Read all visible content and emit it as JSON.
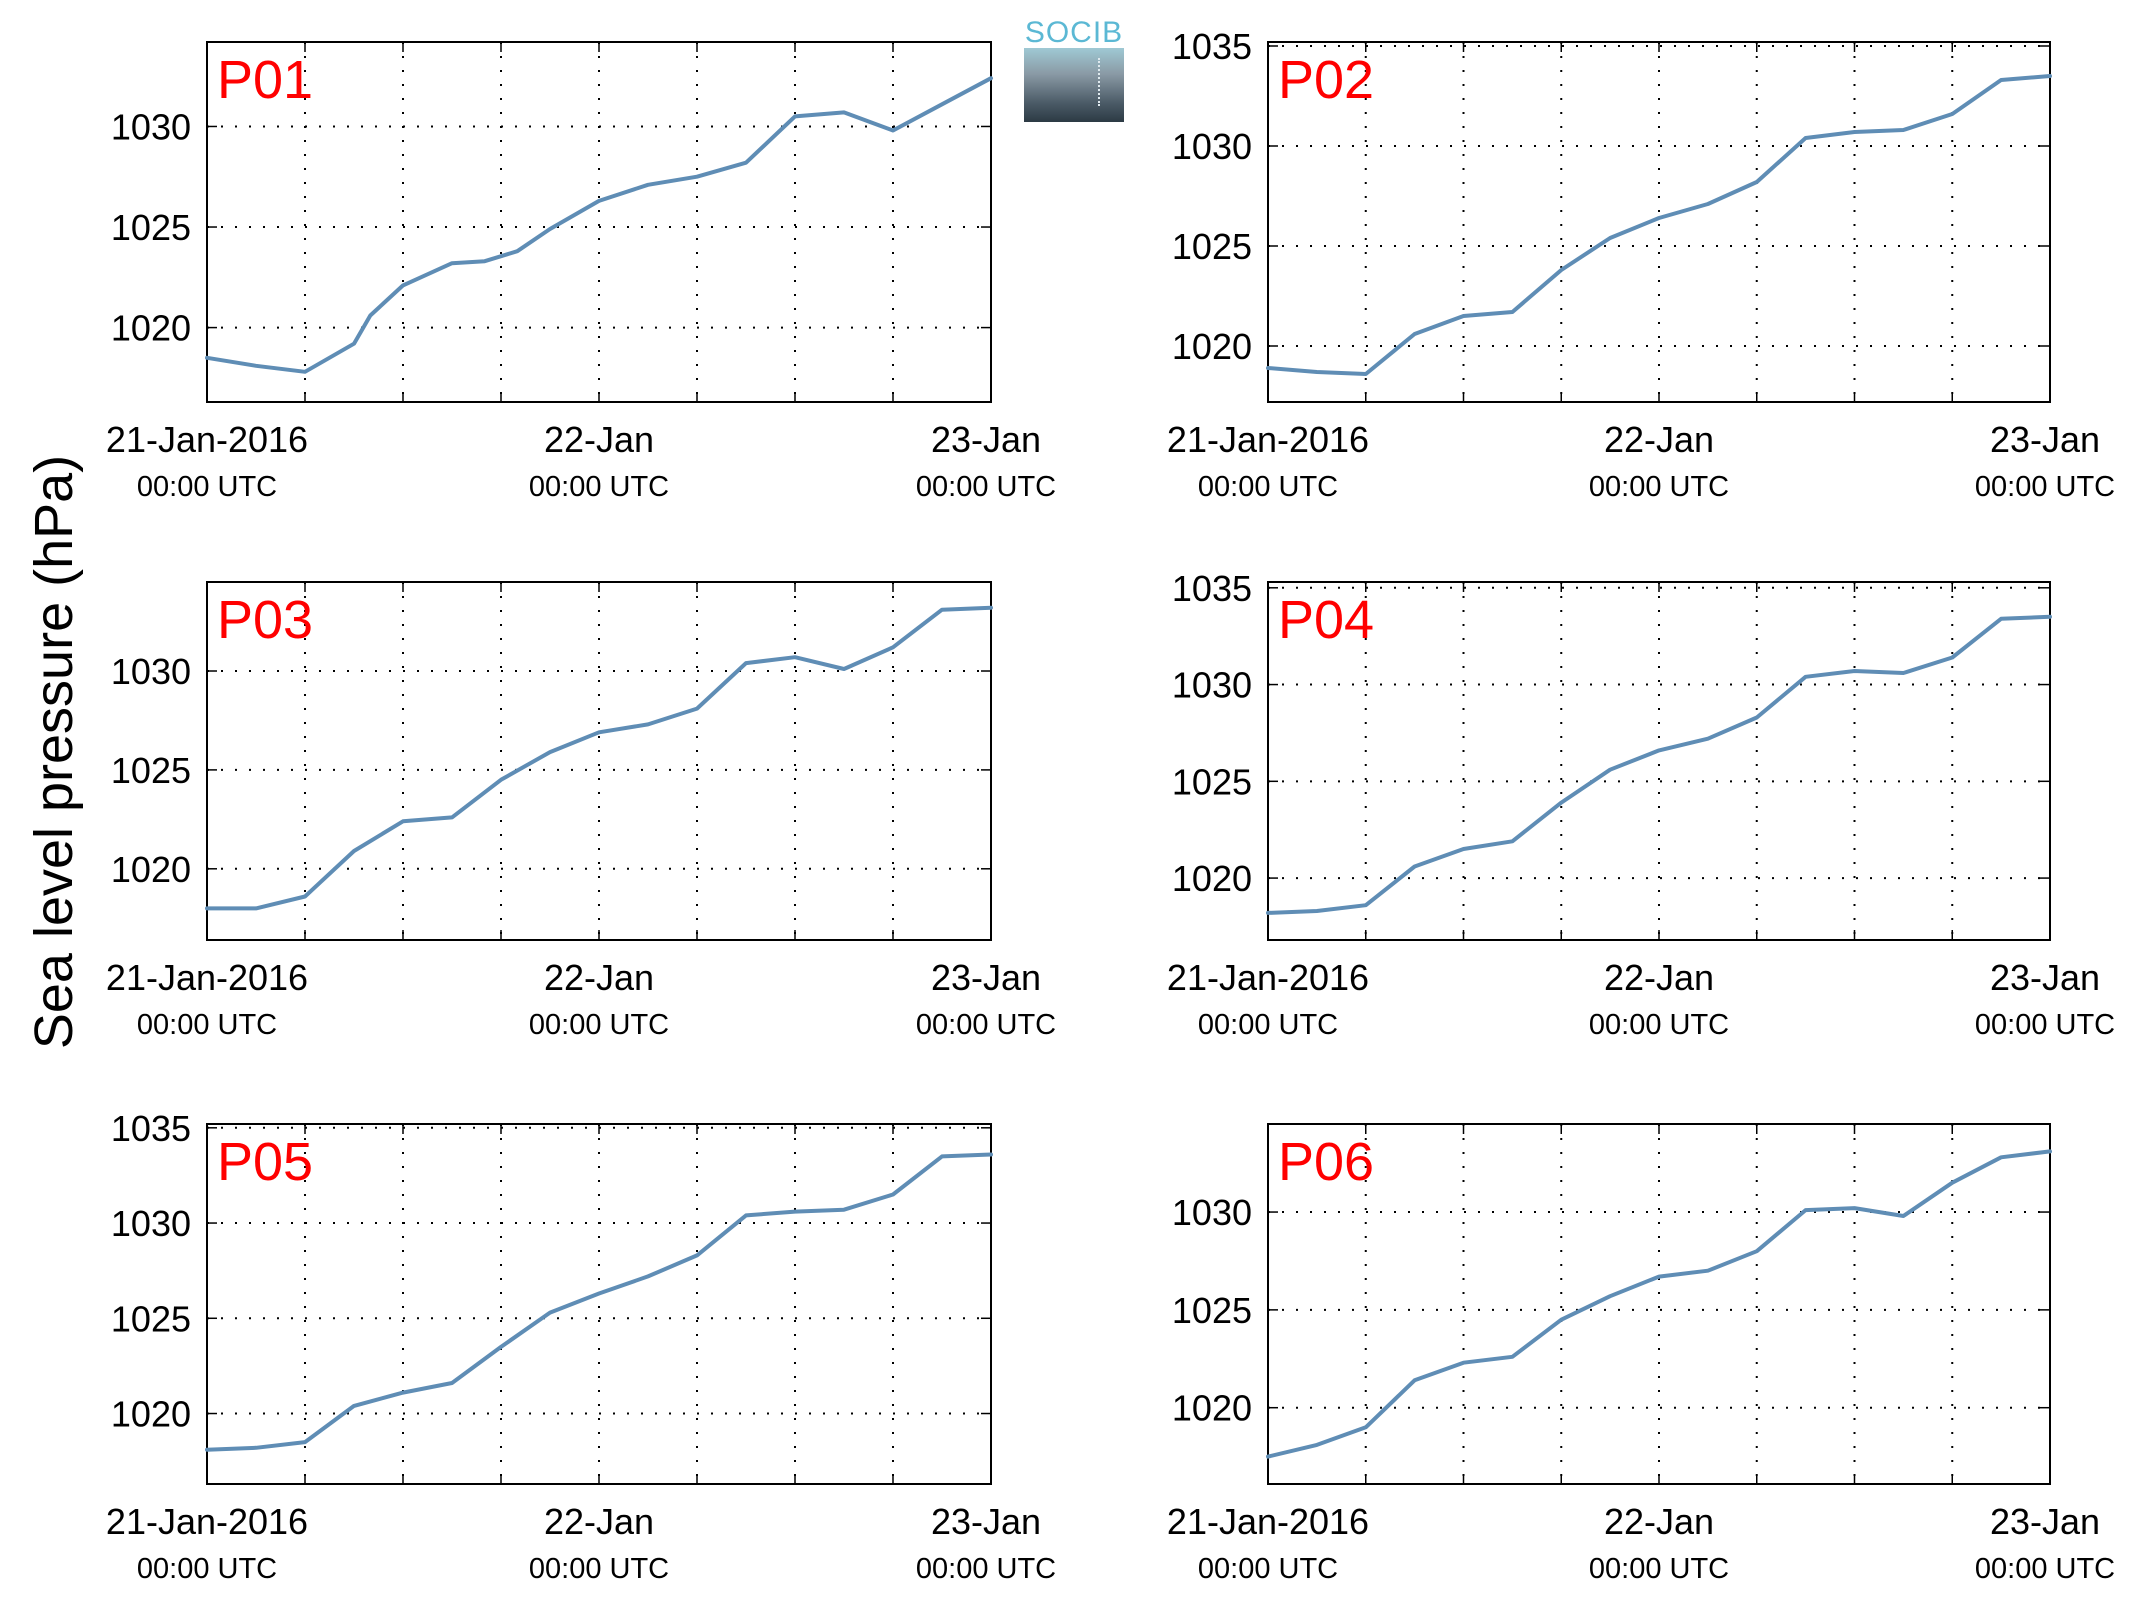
{
  "figure": {
    "ylabel": "Sea level pressure (hPa)",
    "logo_text": "SOCIB",
    "line_color": "#5f8db5",
    "label_color": "#ff0000"
  },
  "chart_data": [
    {
      "type": "line",
      "panel": "P01",
      "ylim": [
        1016.3,
        1034.2
      ],
      "yticks": [
        1020,
        1025,
        1030
      ],
      "xlim": [
        "2016-01-21T00:00",
        "2016-01-23T00:00"
      ],
      "xticklabels": [
        {
          "date": "21-Jan-2016",
          "time": "00:00 UTC"
        },
        {
          "date": "22-Jan",
          "time": "00:00 UTC"
        },
        {
          "date": "23-Jan",
          "time": "00:00 UTC"
        }
      ],
      "grid": true,
      "x_hours": [
        0,
        3,
        6,
        9,
        10,
        12,
        15,
        17,
        19,
        21,
        24,
        27,
        30,
        33,
        36,
        39,
        42,
        45,
        48
      ],
      "values": [
        1018.5,
        1018.1,
        1017.8,
        1019.2,
        1020.6,
        1022.1,
        1023.2,
        1023.3,
        1023.8,
        1024.9,
        1026.3,
        1027.1,
        1027.5,
        1028.2,
        1030.5,
        1030.7,
        1029.8,
        1031.1,
        1032.4
      ]
    },
    {
      "type": "line",
      "panel": "P02",
      "ylim": [
        1017.2,
        1035.2
      ],
      "yticks": [
        1020,
        1025,
        1030,
        1035
      ],
      "xlim": [
        "2016-01-21T00:00",
        "2016-01-23T00:00"
      ],
      "xticklabels": [
        {
          "date": "21-Jan-2016",
          "time": "00:00 UTC"
        },
        {
          "date": "22-Jan",
          "time": "00:00 UTC"
        },
        {
          "date": "23-Jan",
          "time": "00:00 UTC"
        }
      ],
      "grid": true,
      "x_hours": [
        0,
        3,
        6,
        9,
        12,
        15,
        18,
        21,
        24,
        27,
        30,
        33,
        36,
        39,
        42,
        45,
        48
      ],
      "values": [
        1018.9,
        1018.7,
        1018.6,
        1020.6,
        1021.5,
        1021.7,
        1023.8,
        1025.4,
        1026.4,
        1027.1,
        1028.2,
        1030.4,
        1030.7,
        1030.8,
        1031.6,
        1033.3,
        1033.5
      ]
    },
    {
      "type": "line",
      "panel": "P03",
      "ylim": [
        1016.4,
        1034.5
      ],
      "yticks": [
        1020,
        1025,
        1030
      ],
      "xlim": [
        "2016-01-21T00:00",
        "2016-01-23T00:00"
      ],
      "xticklabels": [
        {
          "date": "21-Jan-2016",
          "time": "00:00 UTC"
        },
        {
          "date": "22-Jan",
          "time": "00:00 UTC"
        },
        {
          "date": "23-Jan",
          "time": "00:00 UTC"
        }
      ],
      "grid": true,
      "x_hours": [
        0,
        3,
        6,
        9,
        12,
        15,
        18,
        21,
        24,
        27,
        30,
        33,
        36,
        39,
        42,
        45,
        48
      ],
      "values": [
        1018.0,
        1018.0,
        1018.6,
        1020.9,
        1022.4,
        1022.6,
        1024.5,
        1025.9,
        1026.9,
        1027.3,
        1028.1,
        1030.4,
        1030.7,
        1030.1,
        1031.2,
        1033.1,
        1033.2
      ]
    },
    {
      "type": "line",
      "panel": "P04",
      "ylim": [
        1016.8,
        1035.3
      ],
      "yticks": [
        1020,
        1025,
        1030,
        1035
      ],
      "xlim": [
        "2016-01-21T00:00",
        "2016-01-23T00:00"
      ],
      "xticklabels": [
        {
          "date": "21-Jan-2016",
          "time": "00:00 UTC"
        },
        {
          "date": "22-Jan",
          "time": "00:00 UTC"
        },
        {
          "date": "23-Jan",
          "time": "00:00 UTC"
        }
      ],
      "grid": true,
      "x_hours": [
        0,
        3,
        6,
        9,
        12,
        15,
        18,
        21,
        24,
        27,
        30,
        33,
        36,
        39,
        42,
        45,
        48
      ],
      "values": [
        1018.2,
        1018.3,
        1018.6,
        1020.6,
        1021.5,
        1021.9,
        1023.9,
        1025.6,
        1026.6,
        1027.2,
        1028.3,
        1030.4,
        1030.7,
        1030.6,
        1031.4,
        1033.4,
        1033.5
      ]
    },
    {
      "type": "line",
      "panel": "P05",
      "ylim": [
        1016.3,
        1035.2
      ],
      "yticks": [
        1020,
        1025,
        1030,
        1035
      ],
      "xlim": [
        "2016-01-21T00:00",
        "2016-01-23T00:00"
      ],
      "xticklabels": [
        {
          "date": "21-Jan-2016",
          "time": "00:00 UTC"
        },
        {
          "date": "22-Jan",
          "time": "00:00 UTC"
        },
        {
          "date": "23-Jan",
          "time": "00:00 UTC"
        }
      ],
      "grid": true,
      "x_hours": [
        0,
        3,
        6,
        9,
        12,
        15,
        18,
        21,
        24,
        27,
        30,
        33,
        36,
        39,
        42,
        45,
        48
      ],
      "values": [
        1018.1,
        1018.2,
        1018.5,
        1020.4,
        1021.1,
        1021.6,
        1023.5,
        1025.3,
        1026.3,
        1027.2,
        1028.3,
        1030.4,
        1030.6,
        1030.7,
        1031.5,
        1033.5,
        1033.6
      ]
    },
    {
      "type": "line",
      "panel": "P06",
      "ylim": [
        1016.1,
        1034.5
      ],
      "yticks": [
        1020,
        1025,
        1030
      ],
      "xlim": [
        "2016-01-21T00:00",
        "2016-01-23T00:00"
      ],
      "xticklabels": [
        {
          "date": "21-Jan-2016",
          "time": "00:00 UTC"
        },
        {
          "date": "22-Jan",
          "time": "00:00 UTC"
        },
        {
          "date": "23-Jan",
          "time": "00:00 UTC"
        }
      ],
      "grid": true,
      "x_hours": [
        0,
        3,
        6,
        9,
        12,
        15,
        18,
        21,
        24,
        27,
        30,
        33,
        36,
        39,
        42,
        45,
        48
      ],
      "values": [
        1017.5,
        1018.1,
        1019.0,
        1021.4,
        1022.3,
        1022.6,
        1024.5,
        1025.7,
        1026.7,
        1027.0,
        1028.0,
        1030.1,
        1030.2,
        1029.8,
        1031.5,
        1032.8,
        1033.1
      ]
    }
  ]
}
